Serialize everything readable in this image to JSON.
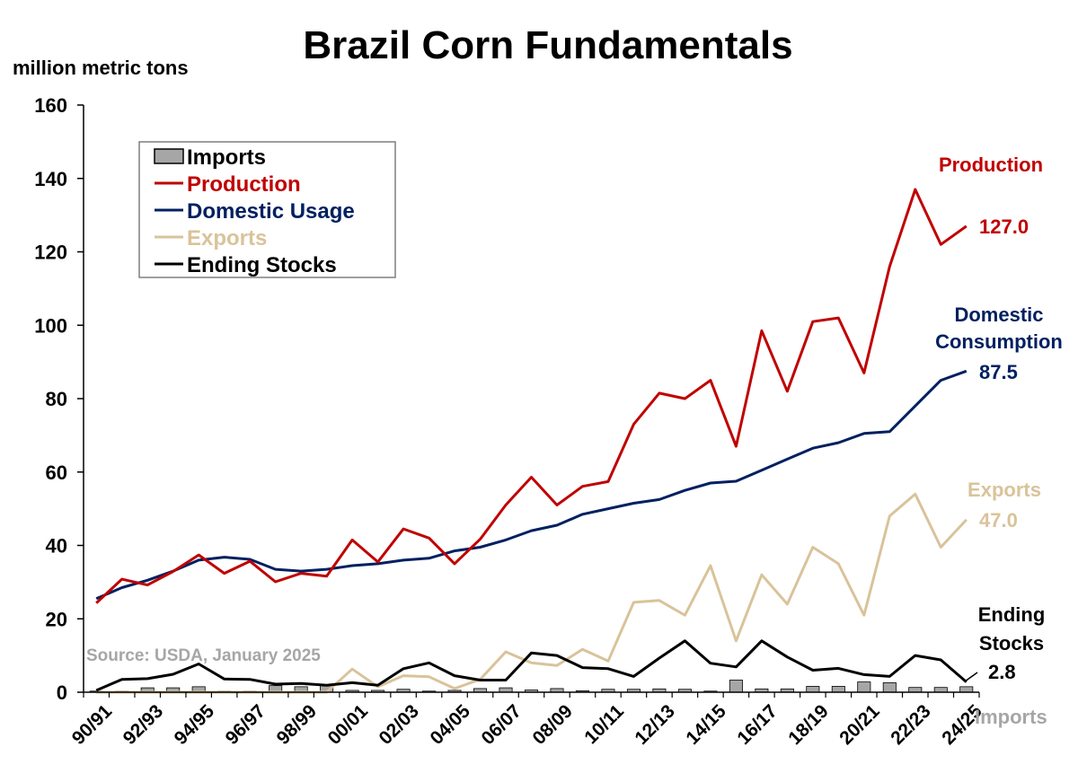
{
  "chart_data": {
    "type": "line",
    "title": "Brazil Corn Fundamentals",
    "ylabel": "million metric tons",
    "ylim": [
      0,
      160
    ],
    "yticks": [
      0,
      20,
      40,
      60,
      80,
      100,
      120,
      140,
      160
    ],
    "categories": [
      "90/91",
      "91/92",
      "92/93",
      "93/94",
      "94/95",
      "95/96",
      "96/97",
      "97/98",
      "98/99",
      "99/00",
      "00/01",
      "01/02",
      "02/03",
      "03/04",
      "04/05",
      "05/06",
      "06/07",
      "07/08",
      "08/09",
      "09/10",
      "10/11",
      "11/12",
      "12/13",
      "13/14",
      "14/15",
      "15/16",
      "16/17",
      "17/18",
      "18/19",
      "19/20",
      "20/21",
      "21/22",
      "22/23",
      "23/24",
      "24/25"
    ],
    "tick_labels": [
      "90/91",
      "92/93",
      "94/95",
      "96/97",
      "98/99",
      "00/01",
      "02/03",
      "04/05",
      "06/07",
      "08/09",
      "10/11",
      "12/13",
      "14/15",
      "16/17",
      "18/19",
      "20/21",
      "22/23",
      "24/25"
    ],
    "series": [
      {
        "name": "Imports",
        "kind": "bar",
        "color": "#a6a6a6",
        "values": [
          0.3,
          0.3,
          1.2,
          1.2,
          1.5,
          0.3,
          0.3,
          1.8,
          1.5,
          1.8,
          0.5,
          0.5,
          0.8,
          0.3,
          0.5,
          1.0,
          1.2,
          0.6,
          1.0,
          0.4,
          0.8,
          0.8,
          0.9,
          0.8,
          0.3,
          3.3,
          0.9,
          0.9,
          1.6,
          1.6,
          2.8,
          2.6,
          1.3,
          1.3,
          1.5
        ]
      },
      {
        "name": "Production",
        "kind": "line",
        "color": "#c00000",
        "values": [
          24.3,
          30.8,
          29.2,
          32.9,
          37.4,
          32.4,
          35.7,
          30.1,
          32.4,
          31.6,
          41.5,
          35.5,
          44.5,
          42.0,
          35.0,
          41.7,
          51.0,
          58.6,
          51.0,
          56.1,
          57.4,
          73.0,
          81.5,
          80.0,
          85.0,
          67.0,
          98.5,
          82.0,
          101.0,
          102.0,
          87.0,
          116.0,
          137.0,
          122.0,
          127.0
        ]
      },
      {
        "name": "Domestic Usage",
        "kind": "line",
        "color": "#002060",
        "values": [
          25.5,
          28.5,
          30.5,
          33.0,
          36.0,
          36.8,
          36.2,
          33.5,
          33.0,
          33.5,
          34.5,
          35.0,
          36.0,
          36.5,
          38.5,
          39.5,
          41.5,
          44.0,
          45.5,
          48.5,
          50.0,
          51.5,
          52.5,
          55.0,
          57.0,
          57.5,
          60.5,
          63.5,
          66.5,
          68.0,
          70.5,
          71.0,
          78.0,
          85.0,
          87.5
        ]
      },
      {
        "name": "Exports",
        "kind": "line",
        "color": "#d9c39a",
        "values": [
          0,
          0,
          0,
          0,
          0,
          0,
          0,
          0,
          0,
          0,
          6.3,
          1.5,
          4.5,
          4.2,
          1.0,
          3.5,
          11.0,
          8.0,
          7.3,
          11.7,
          8.5,
          24.5,
          25.0,
          21.0,
          34.5,
          14.0,
          32.0,
          24.0,
          39.5,
          35.0,
          21.0,
          48.0,
          54.0,
          39.5,
          47.0
        ]
      },
      {
        "name": "Ending Stocks",
        "kind": "line",
        "color": "#000000",
        "values": [
          0.5,
          3.5,
          3.7,
          4.9,
          7.7,
          3.6,
          3.5,
          2.2,
          2.4,
          1.9,
          2.6,
          1.9,
          6.4,
          8.0,
          4.5,
          3.3,
          3.3,
          10.7,
          10.0,
          6.7,
          6.4,
          4.3,
          9.3,
          14.0,
          7.9,
          6.9,
          14.0,
          9.6,
          6.0,
          6.5,
          4.8,
          4.3,
          10.0,
          8.8,
          2.8
        ]
      }
    ],
    "annotations": {
      "production_label": "Production",
      "production_value": "127.0",
      "domestic_label_1": "Domestic",
      "domestic_label_2": "Consumption",
      "domestic_value": "87.5",
      "exports_label": "Exports",
      "exports_value": "47.0",
      "stocks_label_1": "Ending",
      "stocks_label_2": "Stocks",
      "stocks_value": "2.8",
      "imports_label": "Imports"
    },
    "source": "Source: USDA, January 2025",
    "legend_position": "top-left",
    "grid": false
  }
}
